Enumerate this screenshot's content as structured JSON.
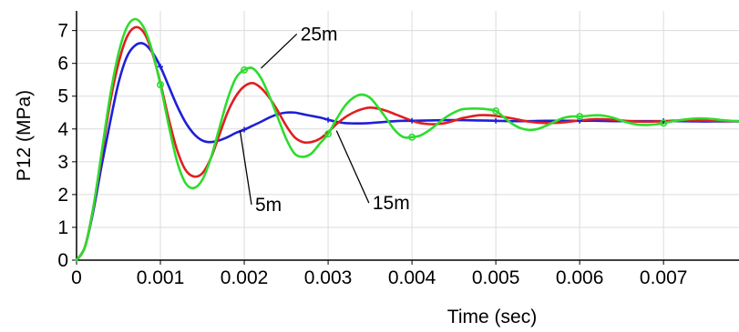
{
  "chart_data": {
    "type": "line",
    "title": "",
    "xlabel": "Time (sec)",
    "ylabel": "P12 (MPa)",
    "xlim": [
      0,
      0.0079
    ],
    "ylim": [
      0,
      7.6
    ],
    "x_ticks": [
      0,
      0.001,
      0.002,
      0.003,
      0.004,
      0.005,
      0.006,
      0.007
    ],
    "x_tick_labels": [
      "0",
      "0.001",
      "0.002",
      "0.003",
      "0.004",
      "0.005",
      "0.006",
      "0.007"
    ],
    "y_ticks": [
      0,
      1,
      2,
      3,
      4,
      5,
      6,
      7
    ],
    "y_tick_labels": [
      "0",
      "1",
      "2",
      "3",
      "4",
      "5",
      "6",
      "7"
    ],
    "grid": true,
    "legend": "none",
    "series": [
      {
        "name": "5m",
        "color": "#1f1fd6",
        "marker": "cross",
        "x": [
          0,
          0.0001,
          0.0002,
          0.0003,
          0.0004,
          0.0005,
          0.0006,
          0.0007,
          0.0008,
          0.0009,
          0.001,
          0.0011,
          0.0012,
          0.0013,
          0.0014,
          0.0015,
          0.0016,
          0.0017,
          0.0018,
          0.0019,
          0.002,
          0.0021,
          0.0022,
          0.0023,
          0.0024,
          0.0025,
          0.0026,
          0.0027,
          0.0028,
          0.0029,
          0.003,
          0.0031,
          0.0032,
          0.0033,
          0.0034,
          0.0035,
          0.0036,
          0.0037,
          0.0038,
          0.0039,
          0.004,
          0.0042,
          0.0044,
          0.0046,
          0.0048,
          0.005,
          0.0052,
          0.0054,
          0.0056,
          0.0058,
          0.006,
          0.0062,
          0.0064,
          0.0066,
          0.0068,
          0.007,
          0.0072,
          0.0074,
          0.0076,
          0.0078,
          0.0079
        ],
        "y": [
          0,
          0.4,
          1.5,
          2.9,
          4.2,
          5.4,
          6.2,
          6.55,
          6.6,
          6.35,
          5.9,
          5.3,
          4.7,
          4.2,
          3.85,
          3.65,
          3.6,
          3.65,
          3.75,
          3.88,
          3.98,
          4.1,
          4.22,
          4.35,
          4.45,
          4.5,
          4.5,
          4.45,
          4.4,
          4.35,
          4.28,
          4.22,
          4.18,
          4.17,
          4.17,
          4.18,
          4.2,
          4.22,
          4.24,
          4.25,
          4.25,
          4.26,
          4.27,
          4.27,
          4.26,
          4.25,
          4.24,
          4.24,
          4.25,
          4.25,
          4.25,
          4.25,
          4.24,
          4.24,
          4.24,
          4.24,
          4.24,
          4.23,
          4.23,
          4.23,
          4.23
        ]
      },
      {
        "name": "15m",
        "color": "#e01f1f",
        "marker": "none",
        "x": [
          0,
          0.0001,
          0.0002,
          0.0003,
          0.0004,
          0.0005,
          0.0006,
          0.0007,
          0.0008,
          0.0009,
          0.001,
          0.0011,
          0.0012,
          0.0013,
          0.0014,
          0.0015,
          0.0016,
          0.0017,
          0.0018,
          0.0019,
          0.002,
          0.0021,
          0.0022,
          0.0023,
          0.0024,
          0.0025,
          0.0026,
          0.0027,
          0.0028,
          0.0029,
          0.003,
          0.0031,
          0.0032,
          0.0033,
          0.0034,
          0.0035,
          0.0036,
          0.0037,
          0.0038,
          0.0039,
          0.004,
          0.0041,
          0.0042,
          0.0043,
          0.0044,
          0.0045,
          0.0046,
          0.0047,
          0.0048,
          0.0049,
          0.005,
          0.0052,
          0.0054,
          0.0056,
          0.0058,
          0.006,
          0.0062,
          0.0064,
          0.0066,
          0.0068,
          0.007,
          0.0072,
          0.0074,
          0.0076,
          0.0078,
          0.0079
        ],
        "y": [
          0,
          0.4,
          1.6,
          3.2,
          4.8,
          6.0,
          6.8,
          7.1,
          6.95,
          6.35,
          5.4,
          4.3,
          3.35,
          2.75,
          2.55,
          2.65,
          3.1,
          3.8,
          4.5,
          5.0,
          5.3,
          5.4,
          5.25,
          4.95,
          4.55,
          4.1,
          3.75,
          3.6,
          3.6,
          3.7,
          3.9,
          4.15,
          4.35,
          4.5,
          4.6,
          4.65,
          4.62,
          4.55,
          4.45,
          4.35,
          4.25,
          4.18,
          4.15,
          4.15,
          4.18,
          4.25,
          4.33,
          4.38,
          4.42,
          4.42,
          4.4,
          4.32,
          4.22,
          4.18,
          4.2,
          4.26,
          4.3,
          4.28,
          4.24,
          4.22,
          4.24,
          4.26,
          4.26,
          4.25,
          4.24,
          4.24
        ]
      },
      {
        "name": "25m",
        "color": "#2edc2e",
        "marker": "circle",
        "x": [
          0,
          0.0001,
          0.0002,
          0.0003,
          0.0004,
          0.0005,
          0.0006,
          0.0007,
          0.0008,
          0.0009,
          0.001,
          0.0011,
          0.0012,
          0.0013,
          0.0014,
          0.0015,
          0.0016,
          0.0017,
          0.0018,
          0.0019,
          0.002,
          0.0021,
          0.0022,
          0.0023,
          0.0024,
          0.0025,
          0.0026,
          0.0027,
          0.0028,
          0.0029,
          0.003,
          0.0031,
          0.0032,
          0.0033,
          0.0034,
          0.0035,
          0.0036,
          0.0037,
          0.0038,
          0.0039,
          0.004,
          0.0041,
          0.0042,
          0.0043,
          0.0044,
          0.0045,
          0.0046,
          0.0047,
          0.0048,
          0.0049,
          0.005,
          0.0051,
          0.0052,
          0.0053,
          0.0054,
          0.0055,
          0.0056,
          0.0057,
          0.0058,
          0.0059,
          0.006,
          0.0061,
          0.0062,
          0.0063,
          0.0064,
          0.0065,
          0.0066,
          0.0067,
          0.0068,
          0.0069,
          0.007,
          0.0071,
          0.0072,
          0.0073,
          0.0074,
          0.0075,
          0.0076,
          0.0077,
          0.0078,
          0.0079
        ],
        "y": [
          0,
          0.4,
          1.6,
          3.3,
          5.0,
          6.3,
          7.1,
          7.35,
          7.1,
          6.4,
          5.35,
          4.1,
          3.0,
          2.35,
          2.2,
          2.45,
          3.1,
          4.0,
          4.9,
          5.55,
          5.8,
          5.85,
          5.55,
          5.0,
          4.35,
          3.7,
          3.25,
          3.15,
          3.25,
          3.55,
          3.85,
          4.3,
          4.7,
          4.95,
          5.05,
          4.95,
          4.65,
          4.3,
          3.95,
          3.75,
          3.75,
          3.8,
          3.95,
          4.15,
          4.35,
          4.5,
          4.6,
          4.62,
          4.62,
          4.6,
          4.55,
          4.35,
          4.15,
          4.02,
          3.97,
          4.0,
          4.1,
          4.22,
          4.33,
          4.38,
          4.38,
          4.4,
          4.42,
          4.4,
          4.34,
          4.25,
          4.18,
          4.13,
          4.12,
          4.14,
          4.18,
          4.23,
          4.27,
          4.3,
          4.32,
          4.32,
          4.3,
          4.27,
          4.25,
          4.24
        ]
      }
    ],
    "annotations": [
      {
        "text": "25m",
        "point": [
          0.0022,
          5.85
        ],
        "text_pos": [
          0.00267,
          6.7
        ]
      },
      {
        "text": "5m",
        "point": [
          0.00195,
          3.95
        ],
        "text_pos": [
          0.00213,
          1.5
        ]
      },
      {
        "text": "15m",
        "point": [
          0.0031,
          3.95
        ],
        "text_pos": [
          0.00353,
          1.55
        ]
      }
    ]
  }
}
